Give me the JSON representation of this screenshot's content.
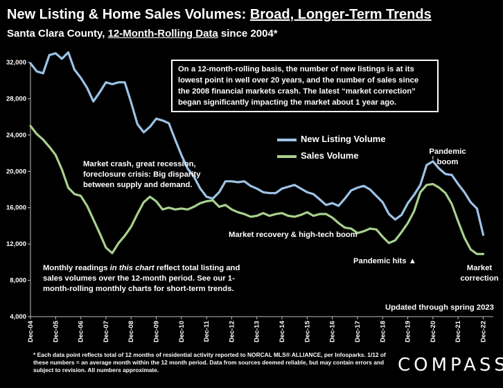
{
  "header": {
    "title_prefix": "New Listing & Home Sales Volumes: ",
    "title_underlined": "Broad, Longer-Term Trends",
    "subtitle_prefix": "Santa Clara County, ",
    "subtitle_underlined": "12-Month-Rolling Data",
    "subtitle_suffix": " since 2004*"
  },
  "annotations": {
    "box_text": "On a 12-month-rolling basis, the number of new listings is at its lowest point in well over 20 years, and the number of sales since the 2008 financial markets crash. The latest “market correction” began significantly impacting the market about 1 year ago.",
    "crash": "Market crash,  great recession, foreclosure crisis: Big disparity between supply and demand.",
    "recovery": "Market recovery & high-tech boom",
    "pandemic_hits": "Pandemic hits ▲",
    "pandemic_boom": "Pandemic boom",
    "market_correction": "Market correction",
    "monthly_prefix": "Monthly readings ",
    "monthly_italic": "in this chart",
    "monthly_rest": " reflect total listing and sales volumes over the 12-month period. See our 1-month-rolling monthly charts for short-term trends.",
    "updated": "Updated through spring 2023"
  },
  "footnote": "* Each data point reflects total of 12 months of residential activity reported to NORCAL MLS® ALLIANCE, per Infosparks. 1/12 of these numbers = an average month within the 12 month period. Data from sources deemed reliable, but may contain errors and subject to revision. All numbers approximate.",
  "logo": "COMPASS",
  "colors": {
    "new_listing": "#9dc3e6",
    "sales": "#a9d18e",
    "background": "#000000"
  },
  "chart_data": {
    "type": "line",
    "ylim": [
      4000,
      32000
    ],
    "yticks": [
      "4,000",
      "8,000",
      "12,000",
      "16,000",
      "20,000",
      "24,000",
      "28,000",
      "32,000"
    ],
    "xticks": [
      "Dec-04",
      "Dec-05",
      "Dec-06",
      "Dec-07",
      "Dec-08",
      "Dec-09",
      "Dec-10",
      "Dec-11",
      "Dec-12",
      "Dec-13",
      "Dec-14",
      "Dec-15",
      "Dec-16",
      "Dec-17",
      "Dec-18",
      "Dec-19",
      "Dec-20",
      "Dec-21",
      "Dec-22"
    ],
    "legend_position": "upper-right",
    "series": [
      {
        "name": "New Listing Volume",
        "points": [
          [
            2004.95,
            31900
          ],
          [
            2005.2,
            31000
          ],
          [
            2005.45,
            30800
          ],
          [
            2005.7,
            32800
          ],
          [
            2005.95,
            33000
          ],
          [
            2006.2,
            32400
          ],
          [
            2006.45,
            33100
          ],
          [
            2006.7,
            31200
          ],
          [
            2006.95,
            30300
          ],
          [
            2007.2,
            29200
          ],
          [
            2007.45,
            27700
          ],
          [
            2007.7,
            28700
          ],
          [
            2007.95,
            29800
          ],
          [
            2008.2,
            29600
          ],
          [
            2008.45,
            29800
          ],
          [
            2008.7,
            29800
          ],
          [
            2008.95,
            27600
          ],
          [
            2009.2,
            25200
          ],
          [
            2009.45,
            24300
          ],
          [
            2009.7,
            24900
          ],
          [
            2009.95,
            25800
          ],
          [
            2010.2,
            25600
          ],
          [
            2010.45,
            25300
          ],
          [
            2010.7,
            23500
          ],
          [
            2010.95,
            21800
          ],
          [
            2011.2,
            20300
          ],
          [
            2011.45,
            19400
          ],
          [
            2011.7,
            18100
          ],
          [
            2011.95,
            17200
          ],
          [
            2012.2,
            17000
          ],
          [
            2012.45,
            17700
          ],
          [
            2012.7,
            18900
          ],
          [
            2012.95,
            18900
          ],
          [
            2013.2,
            18800
          ],
          [
            2013.45,
            18900
          ],
          [
            2013.7,
            18400
          ],
          [
            2013.95,
            18100
          ],
          [
            2014.2,
            17700
          ],
          [
            2014.45,
            17600
          ],
          [
            2014.7,
            17600
          ],
          [
            2014.95,
            18100
          ],
          [
            2015.2,
            18300
          ],
          [
            2015.45,
            18500
          ],
          [
            2015.7,
            18100
          ],
          [
            2015.95,
            17700
          ],
          [
            2016.2,
            17500
          ],
          [
            2016.45,
            16900
          ],
          [
            2016.7,
            16300
          ],
          [
            2016.95,
            16500
          ],
          [
            2017.2,
            16200
          ],
          [
            2017.45,
            17000
          ],
          [
            2017.7,
            17900
          ],
          [
            2017.95,
            18200
          ],
          [
            2018.2,
            18400
          ],
          [
            2018.45,
            18000
          ],
          [
            2018.7,
            17300
          ],
          [
            2018.95,
            16600
          ],
          [
            2019.2,
            15300
          ],
          [
            2019.45,
            14700
          ],
          [
            2019.7,
            15200
          ],
          [
            2019.95,
            16500
          ],
          [
            2020.2,
            17400
          ],
          [
            2020.45,
            18500
          ],
          [
            2020.7,
            20700
          ],
          [
            2020.95,
            21100
          ],
          [
            2021.2,
            20300
          ],
          [
            2021.45,
            19700
          ],
          [
            2021.7,
            19600
          ],
          [
            2021.95,
            18600
          ],
          [
            2022.2,
            17700
          ],
          [
            2022.45,
            16600
          ],
          [
            2022.7,
            15900
          ],
          [
            2022.95,
            13000
          ]
        ]
      },
      {
        "name": "Sales Volume",
        "points": [
          [
            2004.95,
            25000
          ],
          [
            2005.2,
            24100
          ],
          [
            2005.45,
            23500
          ],
          [
            2005.7,
            22700
          ],
          [
            2005.95,
            21800
          ],
          [
            2006.2,
            20200
          ],
          [
            2006.45,
            18200
          ],
          [
            2006.7,
            17500
          ],
          [
            2006.95,
            17300
          ],
          [
            2007.2,
            16200
          ],
          [
            2007.45,
            14700
          ],
          [
            2007.7,
            13200
          ],
          [
            2007.95,
            11600
          ],
          [
            2008.2,
            11000
          ],
          [
            2008.45,
            12100
          ],
          [
            2008.7,
            12900
          ],
          [
            2008.95,
            13900
          ],
          [
            2009.2,
            15300
          ],
          [
            2009.45,
            16600
          ],
          [
            2009.7,
            17200
          ],
          [
            2009.95,
            16700
          ],
          [
            2010.2,
            15800
          ],
          [
            2010.45,
            16000
          ],
          [
            2010.7,
            15800
          ],
          [
            2010.95,
            15900
          ],
          [
            2011.2,
            15800
          ],
          [
            2011.45,
            16100
          ],
          [
            2011.7,
            16500
          ],
          [
            2011.95,
            16700
          ],
          [
            2012.2,
            16800
          ],
          [
            2012.45,
            16100
          ],
          [
            2012.7,
            16300
          ],
          [
            2012.95,
            15800
          ],
          [
            2013.2,
            15500
          ],
          [
            2013.45,
            15300
          ],
          [
            2013.7,
            15000
          ],
          [
            2013.95,
            15100
          ],
          [
            2014.2,
            15400
          ],
          [
            2014.45,
            15100
          ],
          [
            2014.7,
            15300
          ],
          [
            2014.95,
            15400
          ],
          [
            2015.2,
            15100
          ],
          [
            2015.45,
            15000
          ],
          [
            2015.7,
            15200
          ],
          [
            2015.95,
            15500
          ],
          [
            2016.2,
            15100
          ],
          [
            2016.45,
            15300
          ],
          [
            2016.7,
            15300
          ],
          [
            2016.95,
            14900
          ],
          [
            2017.2,
            14300
          ],
          [
            2017.45,
            13800
          ],
          [
            2017.7,
            13700
          ],
          [
            2017.95,
            13200
          ],
          [
            2018.2,
            13400
          ],
          [
            2018.45,
            13700
          ],
          [
            2018.7,
            13600
          ],
          [
            2018.95,
            12800
          ],
          [
            2019.2,
            12100
          ],
          [
            2019.45,
            12400
          ],
          [
            2019.7,
            13300
          ],
          [
            2019.95,
            14300
          ],
          [
            2020.2,
            15600
          ],
          [
            2020.45,
            17700
          ],
          [
            2020.7,
            18500
          ],
          [
            2020.95,
            18600
          ],
          [
            2021.2,
            18200
          ],
          [
            2021.45,
            17600
          ],
          [
            2021.7,
            16400
          ],
          [
            2021.95,
            14500
          ],
          [
            2022.2,
            12700
          ],
          [
            2022.45,
            11400
          ],
          [
            2022.7,
            10900
          ],
          [
            2022.95,
            10900
          ]
        ]
      }
    ]
  }
}
